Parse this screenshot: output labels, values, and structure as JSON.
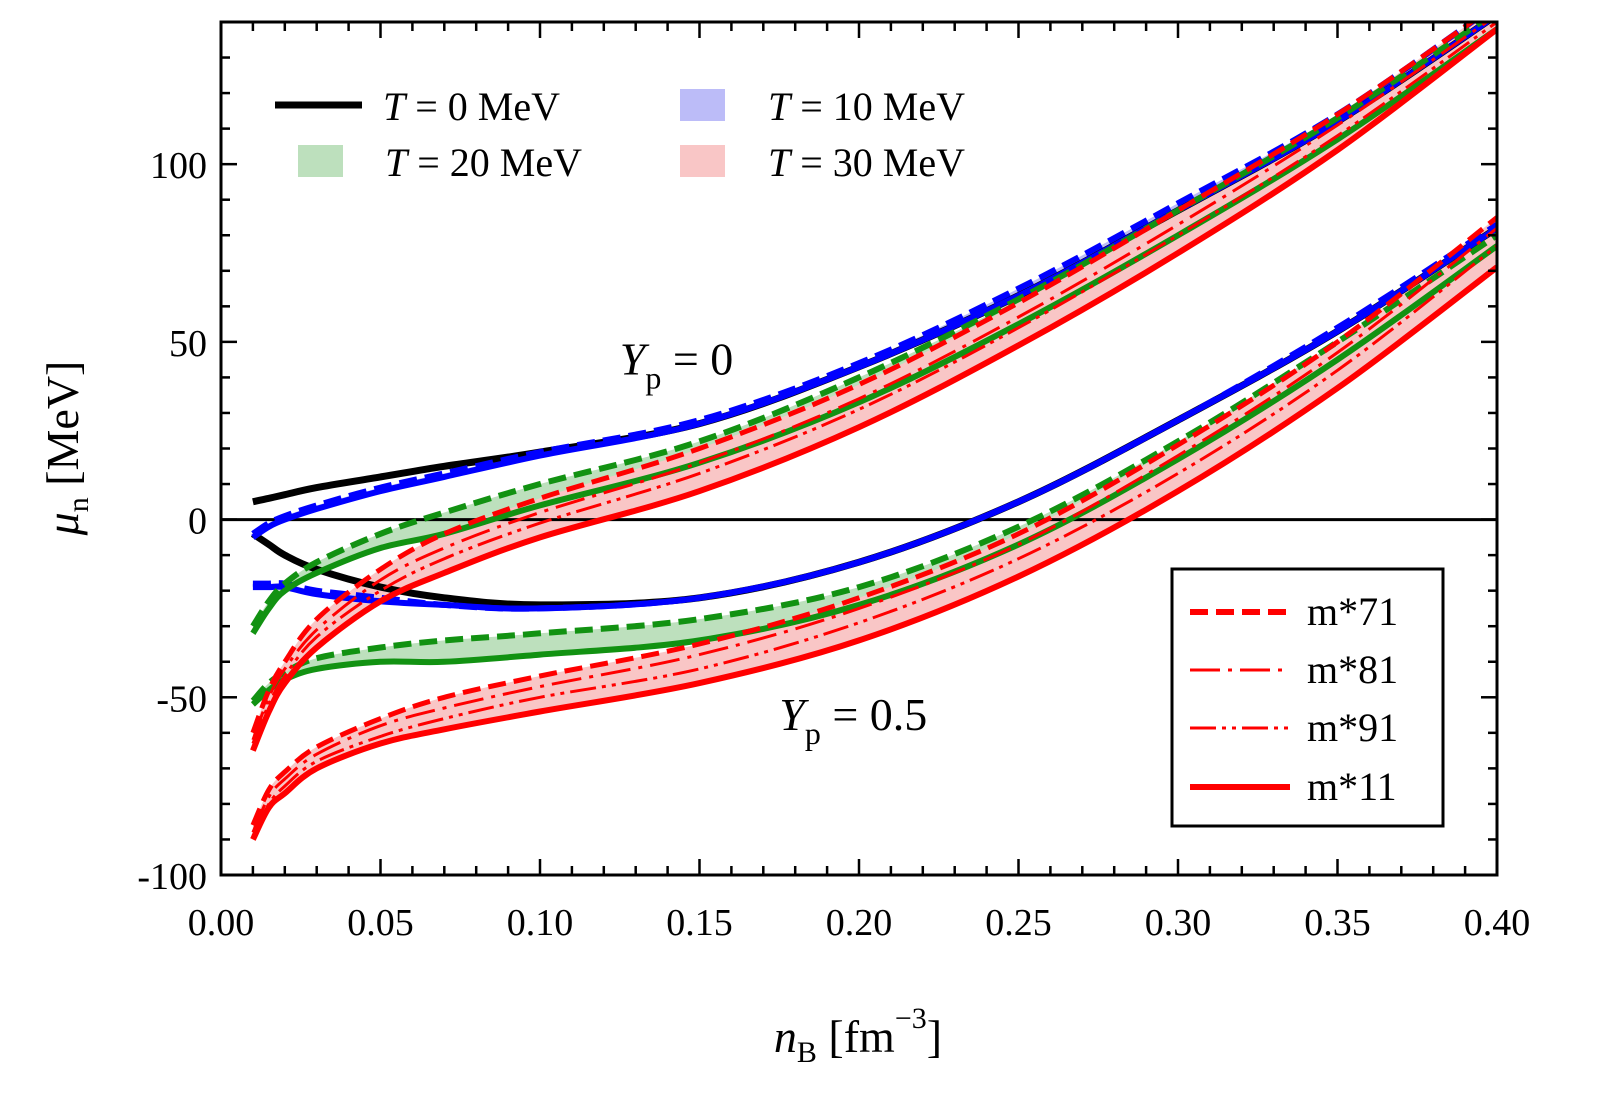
{
  "chart_data": {
    "type": "line",
    "xlabel": {
      "main": "n",
      "sub": "B",
      "rest": " [fm",
      "sup": "−3",
      "close": "]"
    },
    "ylabel": {
      "main": "μ",
      "sub": "n",
      "rest": " [MeV]"
    },
    "xlim": [
      0.0,
      0.4
    ],
    "ylim": [
      -100,
      140
    ],
    "x_ticks": [
      "0.00",
      "0.05",
      "0.10",
      "0.15",
      "0.20",
      "0.25",
      "0.30",
      "0.35",
      "0.40"
    ],
    "x_tick_values": [
      0.0,
      0.05,
      0.1,
      0.15,
      0.2,
      0.25,
      0.3,
      0.35,
      0.4
    ],
    "y_ticks": [
      "-100",
      "-50",
      "0",
      "50",
      "100"
    ],
    "y_tick_values": [
      -100,
      -50,
      0,
      50,
      100
    ],
    "x_minor_step": 0.01,
    "y_minor_step": 10,
    "zero_line": 0,
    "colors": {
      "T0": "#000000",
      "T10": "#0000ff",
      "T20": "#129212",
      "T30": "#ff0000",
      "T10_fill": "#bcbcf8",
      "T20_fill": "#bde0bd",
      "T30_fill": "#f9c6c6"
    },
    "annotations": [
      {
        "id": "yp0",
        "main": "Y",
        "sub": "p",
        "rest": " = 0",
        "x": 0.125,
        "y": 45
      },
      {
        "id": "yp05",
        "main": "Y",
        "sub": "p",
        "rest": " = 0.5",
        "x": 0.175,
        "y": -55
      }
    ],
    "legend_T": {
      "placement": "top-left",
      "entries": [
        {
          "id": "T0",
          "kind": "line",
          "color_key": "T0",
          "label_var": "T",
          "label_rest": " = 0 MeV"
        },
        {
          "id": "T10",
          "kind": "patch",
          "color_key": "T10_fill",
          "label_var": "T",
          "label_rest": " = 10 MeV"
        },
        {
          "id": "T20",
          "kind": "patch",
          "color_key": "T20_fill",
          "label_var": "T",
          "label_rest": " = 20 MeV"
        },
        {
          "id": "T30",
          "kind": "patch",
          "color_key": "T30_fill",
          "label_var": "T",
          "label_rest": " = 30 MeV"
        }
      ]
    },
    "legend_models": {
      "placement": "bottom-right",
      "entries": [
        {
          "id": "m71",
          "label": "m*71",
          "style": "dashed"
        },
        {
          "id": "m81",
          "label": "m*81",
          "style": "dashdot"
        },
        {
          "id": "m91",
          "label": "m*91",
          "style": "dashdotdot"
        },
        {
          "id": "m11",
          "label": "m*11",
          "style": "solid"
        }
      ]
    },
    "x": [
      0.01,
      0.015,
      0.02,
      0.03,
      0.05,
      0.07,
      0.1,
      0.15,
      0.2,
      0.25,
      0.3,
      0.35,
      0.4
    ],
    "bands": [
      {
        "id": "band-yp0-T10",
        "fill_key": "T10_fill",
        "upper": "yp0-T10-m71",
        "lower": "yp0-T10-m11"
      },
      {
        "id": "band-yp0-T20",
        "fill_key": "T20_fill",
        "upper": "yp0-T20-m71",
        "lower": "yp0-T20-m11"
      },
      {
        "id": "band-yp0-T30",
        "fill_key": "T30_fill",
        "upper": "yp0-T30-m71",
        "lower": "yp0-T30-m11"
      },
      {
        "id": "band-yp05-T10",
        "fill_key": "T10_fill",
        "upper": "yp05-T10-m71",
        "lower": "yp05-T10-m11"
      },
      {
        "id": "band-yp05-T20",
        "fill_key": "T20_fill",
        "upper": "yp05-T20-m71",
        "lower": "yp05-T20-m11"
      },
      {
        "id": "band-yp05-T30",
        "fill_key": "T30_fill",
        "upper": "yp05-T30-m71",
        "lower": "yp05-T30-m11"
      }
    ],
    "series": [
      {
        "name": "yp0-T0",
        "Yp": 0,
        "T": 0,
        "model": "T0",
        "color_key": "T0",
        "style": "solid",
        "width": 7,
        "values": [
          5,
          6,
          7,
          9,
          12,
          15,
          19,
          27,
          43,
          63,
          87,
          112,
          142
        ]
      },
      {
        "name": "yp05-T0",
        "Yp": 0.5,
        "T": 0,
        "model": "T0",
        "color_key": "T0",
        "style": "solid",
        "width": 7,
        "values": [
          -4,
          -7,
          -10,
          -14,
          -19,
          -22,
          -24,
          -22,
          -12,
          5,
          28,
          53,
          82
        ]
      },
      {
        "name": "yp0-T10-m71",
        "Yp": 0,
        "T": 10,
        "model": "m*71",
        "color_key": "T10",
        "style": "dashed",
        "width": 6,
        "values": [
          -4,
          -1,
          1,
          4,
          9,
          13,
          19,
          28,
          44,
          65,
          89,
          114,
          145
        ]
      },
      {
        "name": "yp0-T10-m11",
        "Yp": 0,
        "T": 10,
        "model": "m*11",
        "color_key": "T10",
        "style": "solid",
        "width": 6,
        "values": [
          -5,
          -2,
          0,
          3,
          8,
          12,
          18,
          27,
          43,
          63,
          87,
          112,
          142
        ]
      },
      {
        "name": "yp05-T10-m71",
        "Yp": 0.5,
        "T": 10,
        "model": "m*71",
        "color_key": "T10",
        "style": "dashed",
        "width": 6,
        "values": [
          -18,
          -18,
          -18,
          -20,
          -22,
          -24,
          -25,
          -22,
          -12,
          5,
          28,
          54,
          83
        ]
      },
      {
        "name": "yp05-T10-m11",
        "Yp": 0.5,
        "T": 10,
        "model": "m*11",
        "color_key": "T10",
        "style": "solid",
        "width": 6,
        "values": [
          -19,
          -19,
          -19,
          -21,
          -23,
          -24,
          -25,
          -22,
          -12,
          5,
          28,
          53,
          82
        ]
      },
      {
        "name": "yp0-T20-m71",
        "Yp": 0,
        "T": 20,
        "model": "m*71",
        "color_key": "T20",
        "style": "dashed",
        "width": 6,
        "values": [
          -30,
          -23,
          -18,
          -12,
          -4,
          2,
          10,
          22,
          40,
          62,
          87,
          113,
          143
        ]
      },
      {
        "name": "yp0-T20-m11",
        "Yp": 0,
        "T": 20,
        "model": "m*11",
        "color_key": "T20",
        "style": "solid",
        "width": 6,
        "values": [
          -32,
          -25,
          -20,
          -15,
          -8,
          -4,
          4,
          16,
          33,
          55,
          80,
          107,
          138
        ]
      },
      {
        "name": "yp05-T20-m71",
        "Yp": 0.5,
        "T": 20,
        "model": "m*71",
        "color_key": "T20",
        "style": "dashed",
        "width": 6,
        "values": [
          -51,
          -46,
          -43,
          -39,
          -36,
          -34,
          -32,
          -28,
          -19,
          -2,
          22,
          50,
          80
        ]
      },
      {
        "name": "yp05-T20-m11",
        "Yp": 0.5,
        "T": 20,
        "model": "m*11",
        "color_key": "T20",
        "style": "solid",
        "width": 6,
        "values": [
          -52,
          -48,
          -45,
          -42,
          -40,
          -40,
          -38,
          -34,
          -24,
          -7,
          17,
          45,
          77
        ]
      },
      {
        "name": "yp0-T30-m71",
        "Yp": 0,
        "T": 30,
        "model": "m*71",
        "color_key": "T30",
        "style": "dashed",
        "width": 5,
        "values": [
          -60,
          -48,
          -40,
          -28,
          -14,
          -4,
          6,
          20,
          38,
          61,
          87,
          114,
          145
        ]
      },
      {
        "name": "yp0-T30-m81",
        "Yp": 0,
        "T": 30,
        "model": "m*81",
        "color_key": "T30",
        "style": "dashdot",
        "width": 3,
        "values": [
          -62,
          -50,
          -42,
          -31,
          -17,
          -8,
          2,
          16,
          34,
          57,
          83,
          111,
          142
        ]
      },
      {
        "name": "yp0-T30-m91",
        "Yp": 0,
        "T": 30,
        "model": "m*91",
        "color_key": "T30",
        "style": "dashdotdot",
        "width": 3,
        "values": [
          -63,
          -52,
          -44,
          -33,
          -20,
          -11,
          -1,
          13,
          31,
          54,
          80,
          108,
          140
        ]
      },
      {
        "name": "yp0-T30-m11",
        "Yp": 0,
        "T": 30,
        "model": "m*11",
        "color_key": "T30",
        "style": "solid",
        "width": 6,
        "values": [
          -65,
          -54,
          -46,
          -36,
          -23,
          -15,
          -5,
          8,
          26,
          49,
          75,
          104,
          138
        ]
      },
      {
        "name": "yp05-T30-m71",
        "Yp": 0.5,
        "T": 30,
        "model": "m*71",
        "color_key": "T30",
        "style": "dashed",
        "width": 5,
        "values": [
          -86,
          -76,
          -71,
          -64,
          -56,
          -50,
          -44,
          -35,
          -22,
          -4,
          21,
          50,
          85
        ]
      },
      {
        "name": "yp05-T30-m81",
        "Yp": 0.5,
        "T": 30,
        "model": "m*81",
        "color_key": "T30",
        "style": "dashdot",
        "width": 3,
        "values": [
          -88,
          -78,
          -73,
          -66,
          -58,
          -53,
          -47,
          -38,
          -25,
          -7,
          18,
          47,
          82
        ]
      },
      {
        "name": "yp05-T30-m91",
        "Yp": 0.5,
        "T": 30,
        "model": "m*91",
        "color_key": "T30",
        "style": "dashdotdot",
        "width": 3,
        "values": [
          -89,
          -80,
          -75,
          -68,
          -61,
          -56,
          -50,
          -42,
          -29,
          -11,
          13,
          42,
          77
        ]
      },
      {
        "name": "yp05-T30-m11",
        "Yp": 0.5,
        "T": 30,
        "model": "m*11",
        "color_key": "T30",
        "style": "solid",
        "width": 6,
        "values": [
          -90,
          -81,
          -77,
          -70,
          -63,
          -59,
          -54,
          -46,
          -34,
          -16,
          8,
          37,
          71
        ]
      }
    ]
  }
}
